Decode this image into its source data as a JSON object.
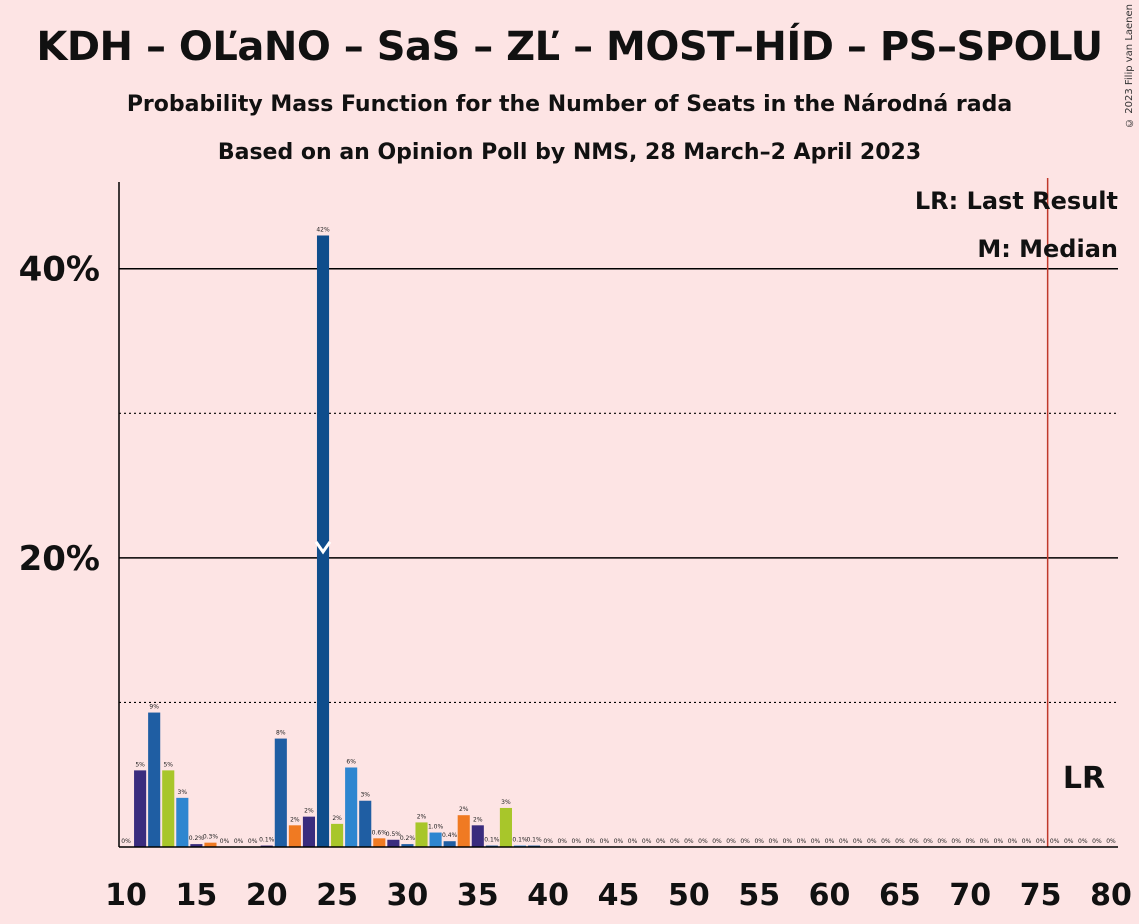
{
  "title": "KDH – OĽaNO – SaS – ZĽ – MOST–HÍD – PS–SPOLU",
  "subtitle": "Probability Mass Function for the Number of Seats in the Národná rada",
  "subtitle2": "Based on an Opinion Poll by NMS, 28 March–2 April 2023",
  "copyright": "© 2023 Filip van Laenen",
  "legend": {
    "lr": "LR: Last Result",
    "m": "M: Median",
    "lr_marker": "LR"
  },
  "colors": {
    "background": "#fde4e4",
    "last_result_line": "#c0392b",
    "purple": "#3a2c7e",
    "blue": "#1f5ea3",
    "lime": "#a8c62a",
    "light_blue": "#2e86d0",
    "orange": "#f07a22",
    "dark_blue": "#0f4d8c"
  },
  "chart_data": {
    "type": "bar",
    "xlim": [
      10,
      80
    ],
    "ylim": [
      0,
      46
    ],
    "x_ticks": [
      "10",
      "15",
      "20",
      "25",
      "30",
      "35",
      "40",
      "45",
      "50",
      "55",
      "60",
      "65",
      "70",
      "75",
      "80"
    ],
    "y_ticks": [
      {
        "value": 10,
        "label": "",
        "style": "dotted"
      },
      {
        "value": 20,
        "label": "20%",
        "style": "solid"
      },
      {
        "value": 30,
        "label": "",
        "style": "dotted"
      },
      {
        "value": 40,
        "label": "40%",
        "style": "solid"
      }
    ],
    "median": 24,
    "last_result": 76,
    "bars": [
      {
        "x": 10,
        "value": 0.0,
        "label": "0%",
        "color": "purple"
      },
      {
        "x": 11,
        "value": 5.3,
        "label": "5%",
        "color": "purple"
      },
      {
        "x": 12,
        "value": 9.3,
        "label": "9%",
        "color": "blue"
      },
      {
        "x": 13,
        "value": 5.3,
        "label": "5%",
        "color": "lime"
      },
      {
        "x": 14,
        "value": 3.4,
        "label": "3%",
        "color": "light_blue"
      },
      {
        "x": 15,
        "value": 0.2,
        "label": "0.2%",
        "color": "purple"
      },
      {
        "x": 16,
        "value": 0.3,
        "label": "0.3%",
        "color": "orange"
      },
      {
        "x": 17,
        "value": 0.0,
        "label": "0%",
        "color": "purple"
      },
      {
        "x": 18,
        "value": 0.0,
        "label": "0%",
        "color": "purple"
      },
      {
        "x": 19,
        "value": 0.0,
        "label": "0%",
        "color": "purple"
      },
      {
        "x": 20,
        "value": 0.1,
        "label": "0.1%",
        "color": "purple"
      },
      {
        "x": 21,
        "value": 7.5,
        "label": "8%",
        "color": "blue"
      },
      {
        "x": 22,
        "value": 1.5,
        "label": "2%",
        "color": "orange"
      },
      {
        "x": 23,
        "value": 2.1,
        "label": "2%",
        "color": "purple"
      },
      {
        "x": 24,
        "value": 42.3,
        "label": "42%",
        "color": "dark_blue"
      },
      {
        "x": 25,
        "value": 1.6,
        "label": "2%",
        "color": "lime"
      },
      {
        "x": 26,
        "value": 5.5,
        "label": "6%",
        "color": "light_blue"
      },
      {
        "x": 27,
        "value": 3.2,
        "label": "3%",
        "color": "blue"
      },
      {
        "x": 28,
        "value": 0.6,
        "label": "0.6%",
        "color": "orange"
      },
      {
        "x": 29,
        "value": 0.5,
        "label": "0.5%",
        "color": "purple"
      },
      {
        "x": 30,
        "value": 0.2,
        "label": "0.2%",
        "color": "blue"
      },
      {
        "x": 31,
        "value": 1.7,
        "label": "2%",
        "color": "lime"
      },
      {
        "x": 32,
        "value": 1.0,
        "label": "1.0%",
        "color": "light_blue"
      },
      {
        "x": 33,
        "value": 0.4,
        "label": "0.4%",
        "color": "blue"
      },
      {
        "x": 34,
        "value": 2.2,
        "label": "2%",
        "color": "orange"
      },
      {
        "x": 35,
        "value": 1.5,
        "label": "2%",
        "color": "purple"
      },
      {
        "x": 36,
        "value": 0.1,
        "label": "0.1%",
        "color": "blue"
      },
      {
        "x": 37,
        "value": 2.7,
        "label": "3%",
        "color": "lime"
      },
      {
        "x": 38,
        "value": 0.1,
        "label": "0.1%",
        "color": "light_blue"
      },
      {
        "x": 39,
        "value": 0.1,
        "label": "0.1%",
        "color": "blue"
      },
      {
        "x": 40,
        "value": 0.0,
        "label": "0%",
        "color": "purple"
      },
      {
        "x": 41,
        "value": 0.0,
        "label": "0%",
        "color": "purple"
      },
      {
        "x": 42,
        "value": 0.0,
        "label": "0%",
        "color": "purple"
      },
      {
        "x": 43,
        "value": 0.0,
        "label": "0%",
        "color": "purple"
      },
      {
        "x": 44,
        "value": 0.0,
        "label": "0%",
        "color": "purple"
      },
      {
        "x": 45,
        "value": 0.0,
        "label": "0%",
        "color": "purple"
      },
      {
        "x": 46,
        "value": 0.0,
        "label": "0%",
        "color": "purple"
      },
      {
        "x": 47,
        "value": 0.0,
        "label": "0%",
        "color": "purple"
      },
      {
        "x": 48,
        "value": 0.0,
        "label": "0%",
        "color": "purple"
      },
      {
        "x": 49,
        "value": 0.0,
        "label": "0%",
        "color": "purple"
      },
      {
        "x": 50,
        "value": 0.0,
        "label": "0%",
        "color": "purple"
      },
      {
        "x": 51,
        "value": 0.0,
        "label": "0%",
        "color": "purple"
      },
      {
        "x": 52,
        "value": 0.0,
        "label": "0%",
        "color": "purple"
      },
      {
        "x": 53,
        "value": 0.0,
        "label": "0%",
        "color": "purple"
      },
      {
        "x": 54,
        "value": 0.0,
        "label": "0%",
        "color": "purple"
      },
      {
        "x": 55,
        "value": 0.0,
        "label": "0%",
        "color": "purple"
      },
      {
        "x": 56,
        "value": 0.0,
        "label": "0%",
        "color": "purple"
      },
      {
        "x": 57,
        "value": 0.0,
        "label": "0%",
        "color": "purple"
      },
      {
        "x": 58,
        "value": 0.0,
        "label": "0%",
        "color": "purple"
      },
      {
        "x": 59,
        "value": 0.0,
        "label": "0%",
        "color": "purple"
      },
      {
        "x": 60,
        "value": 0.0,
        "label": "0%",
        "color": "purple"
      },
      {
        "x": 61,
        "value": 0.0,
        "label": "0%",
        "color": "purple"
      },
      {
        "x": 62,
        "value": 0.0,
        "label": "0%",
        "color": "purple"
      },
      {
        "x": 63,
        "value": 0.0,
        "label": "0%",
        "color": "purple"
      },
      {
        "x": 64,
        "value": 0.0,
        "label": "0%",
        "color": "purple"
      },
      {
        "x": 65,
        "value": 0.0,
        "label": "0%",
        "color": "purple"
      },
      {
        "x": 66,
        "value": 0.0,
        "label": "0%",
        "color": "purple"
      },
      {
        "x": 67,
        "value": 0.0,
        "label": "0%",
        "color": "purple"
      },
      {
        "x": 68,
        "value": 0.0,
        "label": "0%",
        "color": "purple"
      },
      {
        "x": 69,
        "value": 0.0,
        "label": "0%",
        "color": "purple"
      },
      {
        "x": 70,
        "value": 0.0,
        "label": "0%",
        "color": "purple"
      },
      {
        "x": 71,
        "value": 0.0,
        "label": "0%",
        "color": "purple"
      },
      {
        "x": 72,
        "value": 0.0,
        "label": "0%",
        "color": "purple"
      },
      {
        "x": 73,
        "value": 0.0,
        "label": "0%",
        "color": "purple"
      },
      {
        "x": 74,
        "value": 0.0,
        "label": "0%",
        "color": "purple"
      },
      {
        "x": 75,
        "value": 0.0,
        "label": "0%",
        "color": "purple"
      },
      {
        "x": 76,
        "value": 0.0,
        "label": "0%",
        "color": "purple"
      },
      {
        "x": 77,
        "value": 0.0,
        "label": "0%",
        "color": "purple"
      },
      {
        "x": 78,
        "value": 0.0,
        "label": "0%",
        "color": "purple"
      },
      {
        "x": 79,
        "value": 0.0,
        "label": "0%",
        "color": "purple"
      },
      {
        "x": 80,
        "value": 0.0,
        "label": "0%",
        "color": "purple"
      }
    ]
  }
}
